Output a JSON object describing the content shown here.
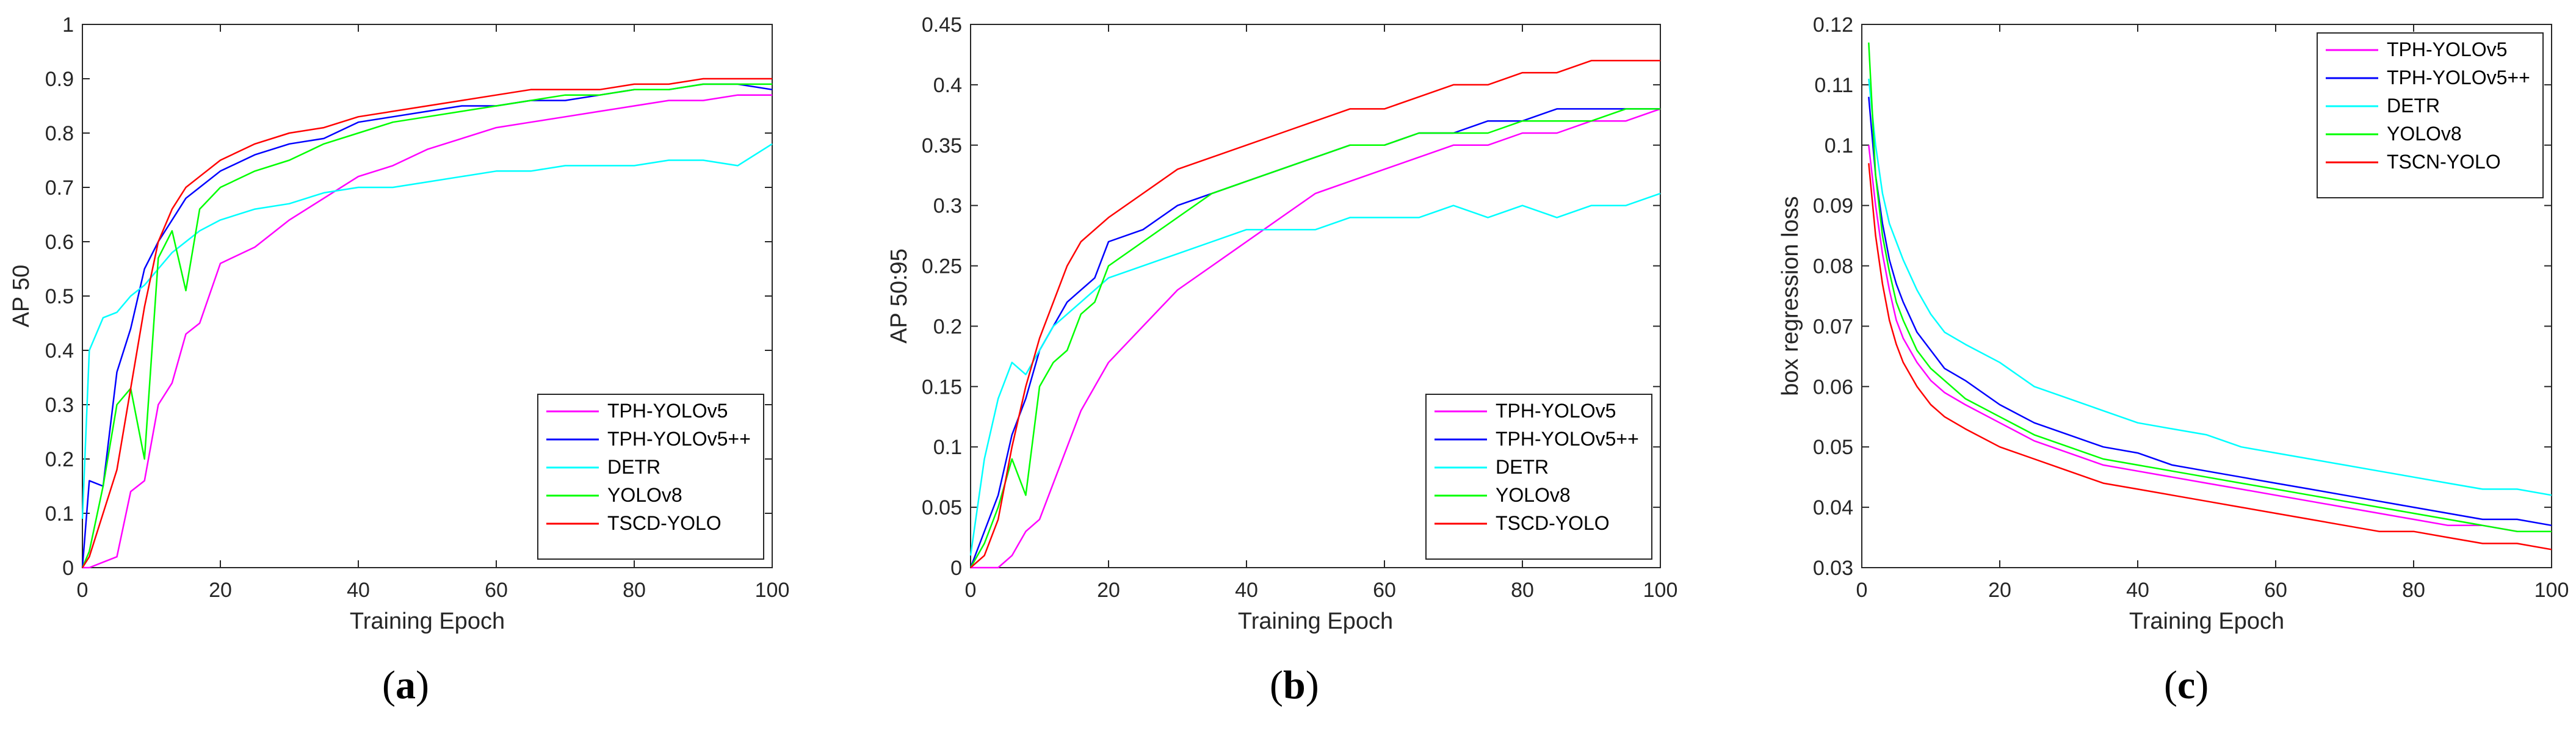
{
  "chart_data": [
    {
      "type": "line",
      "caption": "(a)",
      "xlabel": "Training Epoch",
      "ylabel": "AP 50",
      "xlim": [
        0,
        100
      ],
      "ylim": [
        0,
        1
      ],
      "xticks": [
        0,
        20,
        40,
        60,
        80,
        100
      ],
      "yticks": [
        0,
        0.1,
        0.2,
        0.3,
        0.4,
        0.5,
        0.6,
        0.7,
        0.8,
        0.9,
        1
      ],
      "ytick_labels": [
        "0",
        "0.1",
        "0.2",
        "0.3",
        "0.4",
        "0.5",
        "0.6",
        "0.7",
        "0.8",
        "0.9",
        "1"
      ],
      "legend_position": "bottom-right",
      "series": [
        {
          "name": "TPH-YOLOv5",
          "color": "#ff00ff",
          "x": [
            0,
            1,
            3,
            5,
            7,
            9,
            11,
            13,
            15,
            17,
            20,
            25,
            30,
            35,
            40,
            45,
            50,
            55,
            60,
            65,
            70,
            75,
            80,
            85,
            90,
            95,
            100
          ],
          "values": [
            0,
            0,
            0.01,
            0.02,
            0.14,
            0.16,
            0.3,
            0.34,
            0.43,
            0.45,
            0.56,
            0.59,
            0.64,
            0.68,
            0.72,
            0.74,
            0.77,
            0.79,
            0.81,
            0.82,
            0.83,
            0.84,
            0.85,
            0.86,
            0.86,
            0.87,
            0.87
          ]
        },
        {
          "name": "TPH-YOLOv5++",
          "color": "#0000ff",
          "x": [
            0,
            1,
            3,
            5,
            7,
            9,
            11,
            13,
            15,
            17,
            20,
            25,
            30,
            35,
            40,
            45,
            50,
            55,
            60,
            65,
            70,
            75,
            80,
            85,
            90,
            95,
            100
          ],
          "values": [
            0,
            0.16,
            0.15,
            0.36,
            0.44,
            0.55,
            0.6,
            0.64,
            0.68,
            0.7,
            0.73,
            0.76,
            0.78,
            0.79,
            0.82,
            0.83,
            0.84,
            0.85,
            0.85,
            0.86,
            0.86,
            0.87,
            0.88,
            0.88,
            0.89,
            0.89,
            0.88
          ]
        },
        {
          "name": "DETR",
          "color": "#00ffff",
          "x": [
            0,
            1,
            3,
            5,
            7,
            9,
            11,
            13,
            15,
            17,
            20,
            25,
            30,
            35,
            40,
            45,
            50,
            55,
            60,
            65,
            70,
            75,
            80,
            85,
            90,
            95,
            100
          ],
          "values": [
            0.09,
            0.4,
            0.46,
            0.47,
            0.5,
            0.52,
            0.55,
            0.58,
            0.6,
            0.62,
            0.64,
            0.66,
            0.67,
            0.69,
            0.7,
            0.7,
            0.71,
            0.72,
            0.73,
            0.73,
            0.74,
            0.74,
            0.74,
            0.75,
            0.75,
            0.74,
            0.78
          ]
        },
        {
          "name": "YOLOv8",
          "color": "#00ff00",
          "x": [
            0,
            1,
            3,
            5,
            7,
            9,
            11,
            13,
            15,
            17,
            20,
            25,
            30,
            35,
            40,
            45,
            50,
            55,
            60,
            65,
            70,
            75,
            80,
            85,
            90,
            95,
            100
          ],
          "values": [
            0,
            0.03,
            0.15,
            0.3,
            0.33,
            0.2,
            0.57,
            0.62,
            0.51,
            0.66,
            0.7,
            0.73,
            0.75,
            0.78,
            0.8,
            0.82,
            0.83,
            0.84,
            0.85,
            0.86,
            0.87,
            0.87,
            0.88,
            0.88,
            0.89,
            0.89,
            0.89
          ]
        },
        {
          "name": "TSCD-YOLO",
          "color": "#ff0000",
          "x": [
            0,
            1,
            3,
            5,
            7,
            9,
            11,
            13,
            15,
            17,
            20,
            25,
            30,
            35,
            40,
            45,
            50,
            55,
            60,
            65,
            70,
            75,
            80,
            85,
            90,
            95,
            100
          ],
          "values": [
            0,
            0.02,
            0.1,
            0.18,
            0.33,
            0.48,
            0.6,
            0.66,
            0.7,
            0.72,
            0.75,
            0.78,
            0.8,
            0.81,
            0.83,
            0.84,
            0.85,
            0.86,
            0.87,
            0.88,
            0.88,
            0.88,
            0.89,
            0.89,
            0.9,
            0.9,
            0.9
          ]
        }
      ]
    },
    {
      "type": "line",
      "caption": "(b)",
      "xlabel": "Training Epoch",
      "ylabel": "AP 50:95",
      "xlim": [
        0,
        100
      ],
      "ylim": [
        0,
        0.45
      ],
      "xticks": [
        0,
        20,
        40,
        60,
        80,
        100
      ],
      "yticks": [
        0,
        0.05,
        0.1,
        0.15,
        0.2,
        0.25,
        0.3,
        0.35,
        0.4,
        0.45
      ],
      "ytick_labels": [
        "0",
        "0.05",
        "0.1",
        "0.15",
        "0.2",
        "0.25",
        "0.3",
        "0.35",
        "0.4",
        "0.45"
      ],
      "legend_position": "bottom-right",
      "series": [
        {
          "name": "TPH-YOLOv5",
          "color": "#ff00ff",
          "x": [
            0,
            2,
            4,
            6,
            8,
            10,
            12,
            14,
            16,
            18,
            20,
            25,
            30,
            35,
            40,
            45,
            50,
            55,
            60,
            65,
            70,
            75,
            80,
            85,
            90,
            95,
            100
          ],
          "values": [
            0,
            0,
            0,
            0.01,
            0.03,
            0.04,
            0.07,
            0.1,
            0.13,
            0.15,
            0.17,
            0.2,
            0.23,
            0.25,
            0.27,
            0.29,
            0.31,
            0.32,
            0.33,
            0.34,
            0.35,
            0.35,
            0.36,
            0.36,
            0.37,
            0.37,
            0.38
          ]
        },
        {
          "name": "TPH-YOLOv5++",
          "color": "#0000ff",
          "x": [
            0,
            2,
            4,
            6,
            8,
            10,
            12,
            14,
            16,
            18,
            20,
            25,
            30,
            35,
            40,
            45,
            50,
            55,
            60,
            65,
            70,
            75,
            80,
            85,
            90,
            95,
            100
          ],
          "values": [
            0,
            0.03,
            0.06,
            0.11,
            0.14,
            0.18,
            0.2,
            0.22,
            0.23,
            0.24,
            0.27,
            0.28,
            0.3,
            0.31,
            0.32,
            0.33,
            0.34,
            0.35,
            0.35,
            0.36,
            0.36,
            0.37,
            0.37,
            0.38,
            0.38,
            0.38,
            0.38
          ]
        },
        {
          "name": "DETR",
          "color": "#00ffff",
          "x": [
            0,
            2,
            4,
            6,
            8,
            10,
            12,
            14,
            16,
            18,
            20,
            25,
            30,
            35,
            40,
            45,
            50,
            55,
            60,
            65,
            70,
            75,
            80,
            85,
            90,
            95,
            100
          ],
          "values": [
            0.01,
            0.09,
            0.14,
            0.17,
            0.16,
            0.18,
            0.2,
            0.21,
            0.22,
            0.23,
            0.24,
            0.25,
            0.26,
            0.27,
            0.28,
            0.28,
            0.28,
            0.29,
            0.29,
            0.29,
            0.3,
            0.29,
            0.3,
            0.29,
            0.3,
            0.3,
            0.31
          ]
        },
        {
          "name": "YOLOv8",
          "color": "#00ff00",
          "x": [
            0,
            2,
            4,
            6,
            8,
            10,
            12,
            14,
            16,
            18,
            20,
            25,
            30,
            35,
            40,
            45,
            50,
            55,
            60,
            65,
            70,
            75,
            80,
            85,
            90,
            95,
            100
          ],
          "values": [
            0,
            0.02,
            0.05,
            0.09,
            0.06,
            0.15,
            0.17,
            0.18,
            0.21,
            0.22,
            0.25,
            0.27,
            0.29,
            0.31,
            0.32,
            0.33,
            0.34,
            0.35,
            0.35,
            0.36,
            0.36,
            0.36,
            0.37,
            0.37,
            0.37,
            0.38,
            0.38
          ]
        },
        {
          "name": "TSCD-YOLO",
          "color": "#ff0000",
          "x": [
            0,
            2,
            4,
            6,
            8,
            10,
            12,
            14,
            16,
            18,
            20,
            25,
            30,
            35,
            40,
            45,
            50,
            55,
            60,
            65,
            70,
            75,
            80,
            85,
            90,
            95,
            100
          ],
          "values": [
            0,
            0.01,
            0.04,
            0.1,
            0.15,
            0.19,
            0.22,
            0.25,
            0.27,
            0.28,
            0.29,
            0.31,
            0.33,
            0.34,
            0.35,
            0.36,
            0.37,
            0.38,
            0.38,
            0.39,
            0.4,
            0.4,
            0.41,
            0.41,
            0.42,
            0.42,
            0.42
          ]
        }
      ]
    },
    {
      "type": "line",
      "caption": "(c)",
      "xlabel": "Training Epoch",
      "ylabel": "box regression loss",
      "xlim": [
        0,
        100
      ],
      "ylim": [
        0.03,
        0.12
      ],
      "xticks": [
        0,
        20,
        40,
        60,
        80,
        100
      ],
      "yticks": [
        0.03,
        0.04,
        0.05,
        0.06,
        0.07,
        0.08,
        0.09,
        0.1,
        0.11,
        0.12
      ],
      "ytick_labels": [
        "0.03",
        "0.04",
        "0.05",
        "0.06",
        "0.07",
        "0.08",
        "0.09",
        "0.1",
        "0.11",
        "0.12"
      ],
      "legend_position": "top-right",
      "series": [
        {
          "name": "TPH-YOLOv5",
          "color": "#ff00ff",
          "x": [
            1,
            2,
            3,
            4,
            5,
            6,
            8,
            10,
            12,
            15,
            20,
            25,
            30,
            35,
            40,
            45,
            50,
            55,
            60,
            65,
            70,
            75,
            80,
            85,
            90,
            95,
            100
          ],
          "values": [
            0.1,
            0.09,
            0.082,
            0.076,
            0.071,
            0.068,
            0.064,
            0.061,
            0.059,
            0.057,
            0.054,
            0.051,
            0.049,
            0.047,
            0.046,
            0.045,
            0.044,
            0.043,
            0.042,
            0.041,
            0.04,
            0.039,
            0.038,
            0.037,
            0.037,
            0.036,
            0.036
          ]
        },
        {
          "name": "TPH-YOLOv5++",
          "color": "#0000ff",
          "x": [
            1,
            2,
            3,
            4,
            5,
            6,
            8,
            10,
            12,
            15,
            20,
            25,
            30,
            35,
            40,
            45,
            50,
            55,
            60,
            65,
            70,
            75,
            80,
            85,
            90,
            95,
            100
          ],
          "values": [
            0.108,
            0.095,
            0.087,
            0.081,
            0.077,
            0.074,
            0.069,
            0.066,
            0.063,
            0.061,
            0.057,
            0.054,
            0.052,
            0.05,
            0.049,
            0.047,
            0.046,
            0.045,
            0.044,
            0.043,
            0.042,
            0.041,
            0.04,
            0.039,
            0.038,
            0.038,
            0.037
          ]
        },
        {
          "name": "DETR",
          "color": "#00ffff",
          "x": [
            1,
            2,
            3,
            4,
            5,
            6,
            8,
            10,
            12,
            15,
            20,
            25,
            30,
            35,
            40,
            45,
            50,
            55,
            60,
            65,
            70,
            75,
            80,
            85,
            90,
            95,
            100
          ],
          "values": [
            0.111,
            0.1,
            0.092,
            0.087,
            0.084,
            0.081,
            0.076,
            0.072,
            0.069,
            0.067,
            0.064,
            0.06,
            0.058,
            0.056,
            0.054,
            0.053,
            0.052,
            0.05,
            0.049,
            0.048,
            0.047,
            0.046,
            0.045,
            0.044,
            0.043,
            0.043,
            0.042
          ]
        },
        {
          "name": "YOLOv8",
          "color": "#00ff00",
          "x": [
            1,
            2,
            3,
            4,
            5,
            6,
            8,
            10,
            12,
            15,
            20,
            25,
            30,
            35,
            40,
            45,
            50,
            55,
            60,
            65,
            70,
            75,
            80,
            85,
            90,
            95,
            100
          ],
          "values": [
            0.117,
            0.095,
            0.085,
            0.079,
            0.074,
            0.071,
            0.066,
            0.063,
            0.061,
            0.058,
            0.055,
            0.052,
            0.05,
            0.048,
            0.047,
            0.046,
            0.045,
            0.044,
            0.043,
            0.042,
            0.041,
            0.04,
            0.039,
            0.038,
            0.037,
            0.036,
            0.036
          ]
        },
        {
          "name": "TSCN-YOLO",
          "color": "#ff0000",
          "x": [
            1,
            2,
            3,
            4,
            5,
            6,
            8,
            10,
            12,
            15,
            20,
            25,
            30,
            35,
            40,
            45,
            50,
            55,
            60,
            65,
            70,
            75,
            80,
            85,
            90,
            95,
            100
          ],
          "values": [
            0.097,
            0.085,
            0.077,
            0.071,
            0.067,
            0.064,
            0.06,
            0.057,
            0.055,
            0.053,
            0.05,
            0.048,
            0.046,
            0.044,
            0.043,
            0.042,
            0.041,
            0.04,
            0.039,
            0.038,
            0.037,
            0.036,
            0.036,
            0.035,
            0.034,
            0.034,
            0.033
          ]
        }
      ]
    }
  ]
}
